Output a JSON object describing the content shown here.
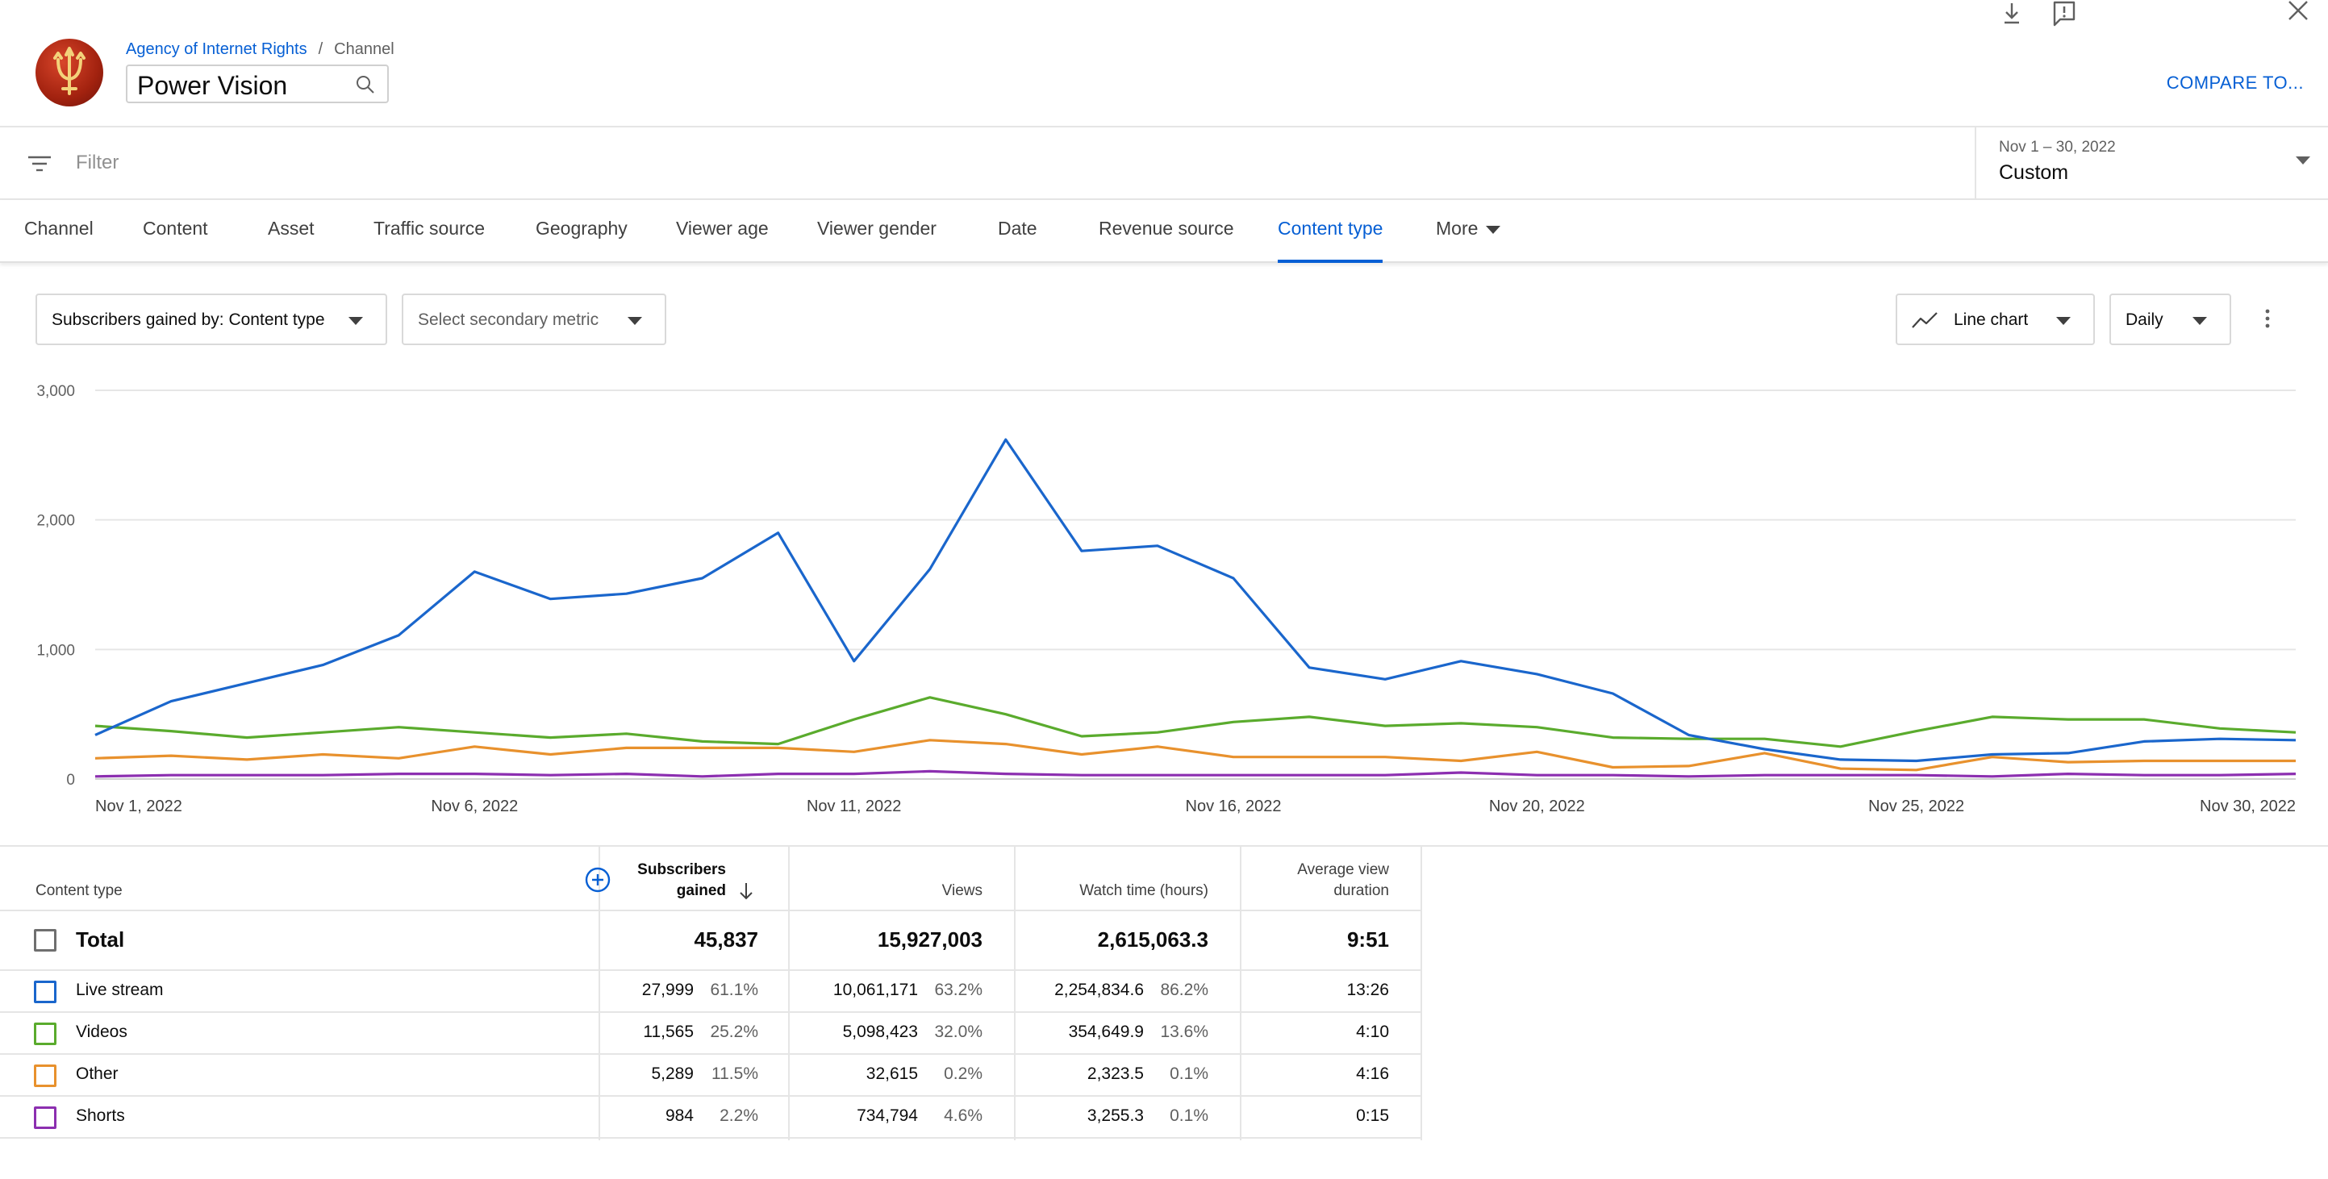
{
  "header": {
    "breadcrumb_org": "Agency of Internet Rights",
    "breadcrumb_sep": "/",
    "breadcrumb_channel": "Channel",
    "channel_name": "Power Vision",
    "compare_label": "COMPARE TO..."
  },
  "filter": {
    "placeholder": "Filter",
    "date_range": "Nov 1 – 30, 2022",
    "date_mode": "Custom"
  },
  "tabs": [
    {
      "label": "Channel"
    },
    {
      "label": "Content"
    },
    {
      "label": "Asset"
    },
    {
      "label": "Traffic source"
    },
    {
      "label": "Geography"
    },
    {
      "label": "Viewer age"
    },
    {
      "label": "Viewer gender"
    },
    {
      "label": "Date"
    },
    {
      "label": "Revenue source"
    },
    {
      "label": "Content type"
    },
    {
      "label": "More"
    }
  ],
  "controls": {
    "primary_metric": "Subscribers gained by: Content type",
    "secondary_metric": "Select secondary metric",
    "chart_type": "Line chart",
    "granularity": "Daily"
  },
  "colors": {
    "accent": "#065fd4",
    "live_stream": "#1a66cc",
    "videos": "#5aab2d",
    "other": "#e8912d",
    "shorts": "#8c2fb0"
  },
  "chart_data": {
    "type": "line",
    "x": [
      "Nov 1",
      "Nov 2",
      "Nov 3",
      "Nov 4",
      "Nov 5",
      "Nov 6",
      "Nov 7",
      "Nov 8",
      "Nov 9",
      "Nov 10",
      "Nov 11",
      "Nov 12",
      "Nov 13",
      "Nov 14",
      "Nov 15",
      "Nov 16",
      "Nov 17",
      "Nov 18",
      "Nov 19",
      "Nov 20",
      "Nov 21",
      "Nov 22",
      "Nov 23",
      "Nov 24",
      "Nov 25",
      "Nov 26",
      "Nov 27",
      "Nov 28",
      "Nov 29",
      "Nov 30"
    ],
    "x_tick_labels": [
      "Nov 1, 2022",
      "Nov 6, 2022",
      "Nov 11, 2022",
      "Nov 16, 2022",
      "Nov 20, 2022",
      "Nov 25, 2022",
      "Nov 30, 2022"
    ],
    "x_tick_days": [
      1,
      6,
      11,
      16,
      20,
      25,
      30
    ],
    "y_ticks": [
      0,
      1000,
      2000,
      3000
    ],
    "y_tick_labels": [
      "0",
      "1,000",
      "2,000",
      "3,000"
    ],
    "ylim": [
      0,
      3000
    ],
    "grid": true,
    "series": [
      {
        "name": "Live stream",
        "color": "#1a66cc",
        "values": [
          340,
          600,
          740,
          880,
          1110,
          1600,
          1390,
          1430,
          1550,
          1900,
          910,
          1620,
          2620,
          1760,
          1800,
          1550,
          860,
          770,
          910,
          810,
          660,
          340,
          230,
          150,
          140,
          190,
          200,
          290,
          310,
          300
        ]
      },
      {
        "name": "Videos",
        "color": "#5aab2d",
        "values": [
          410,
          370,
          320,
          360,
          400,
          360,
          320,
          350,
          290,
          270,
          460,
          630,
          500,
          330,
          360,
          440,
          480,
          410,
          430,
          400,
          320,
          310,
          310,
          250,
          370,
          480,
          460,
          460,
          390,
          360
        ]
      },
      {
        "name": "Other",
        "color": "#e8912d",
        "values": [
          160,
          180,
          150,
          190,
          160,
          250,
          190,
          240,
          240,
          240,
          210,
          300,
          270,
          190,
          250,
          170,
          170,
          170,
          140,
          210,
          90,
          100,
          200,
          80,
          70,
          170,
          130,
          140,
          140,
          140
        ]
      },
      {
        "name": "Shorts",
        "color": "#8c2fb0",
        "values": [
          20,
          30,
          30,
          30,
          40,
          40,
          30,
          40,
          20,
          40,
          40,
          60,
          40,
          30,
          30,
          30,
          30,
          30,
          50,
          30,
          30,
          20,
          30,
          30,
          30,
          20,
          40,
          30,
          30,
          40
        ]
      }
    ]
  },
  "table": {
    "headers": {
      "content_type": "Content type",
      "subs_line1": "Subscribers",
      "subs_line2": "gained",
      "views": "Views",
      "watch_line1": "Watch time (hours)",
      "avg_line1": "Average view",
      "avg_line2": "duration"
    },
    "total": {
      "label": "Total",
      "subs": "45,837",
      "views": "15,927,003",
      "watch": "2,615,063.3",
      "avg": "9:51"
    },
    "rows": [
      {
        "label": "Live stream",
        "color": "#1a66cc",
        "subs": "27,999",
        "subs_pct": "61.1%",
        "views": "10,061,171",
        "views_pct": "63.2%",
        "watch": "2,254,834.6",
        "watch_pct": "86.2%",
        "avg": "13:26"
      },
      {
        "label": "Videos",
        "color": "#5aab2d",
        "subs": "11,565",
        "subs_pct": "25.2%",
        "views": "5,098,423",
        "views_pct": "32.0%",
        "watch": "354,649.9",
        "watch_pct": "13.6%",
        "avg": "4:10"
      },
      {
        "label": "Other",
        "color": "#e8912d",
        "subs": "5,289",
        "subs_pct": "11.5%",
        "views": "32,615",
        "views_pct": "0.2%",
        "watch": "2,323.5",
        "watch_pct": "0.1%",
        "avg": "4:16"
      },
      {
        "label": "Shorts",
        "color": "#8c2fb0",
        "subs": "984",
        "subs_pct": "2.2%",
        "views": "734,794",
        "views_pct": "4.6%",
        "watch": "3,255.3",
        "watch_pct": "0.1%",
        "avg": "0:15"
      }
    ]
  }
}
